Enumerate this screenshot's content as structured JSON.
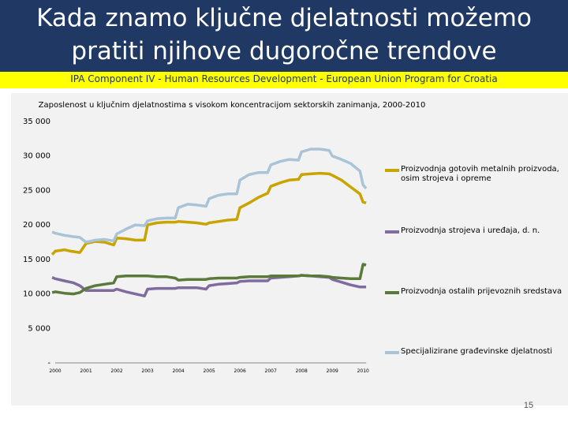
{
  "slide": {
    "title": "Kada znamo ključne djelatnosti možemo\npratiti njihove dugoročne trendove",
    "subtitle": "IPA Component IV - Human Resources Development - European Union Program for Croatia",
    "page_number": "15"
  },
  "colors": {
    "title_band": "#1f3864",
    "subtitle_band": "#ffff00",
    "panel": "#f2f2f2"
  },
  "chart_data": {
    "type": "line",
    "title": "Zaposlenost u ključnim djelatnostima s visokom koncentracijom sektorskih zanimanja, 2000-2010",
    "xlabel": "",
    "ylabel": "",
    "ylim": [
      0,
      35000
    ],
    "y_ticks": [
      0,
      5000,
      10000,
      15000,
      20000,
      25000,
      30000,
      35000
    ],
    "y_tick_labels": [
      "-",
      "5 000",
      "10 000",
      "15 000",
      "20 000",
      "25 000",
      "30 000",
      "35 000"
    ],
    "x_ticks": [
      2000,
      2001,
      2002,
      2003,
      2004,
      2005,
      2006,
      2007,
      2008,
      2009,
      2010
    ],
    "x_tick_labels": [
      "2000",
      "2001",
      "2002",
      "2003",
      "2004",
      "2005",
      "2006",
      "2007",
      "2008",
      "2009",
      "2010"
    ],
    "xlim": [
      2000,
      2010.25
    ],
    "grid": "none",
    "legend_position": "right",
    "series": [
      {
        "name": "Proizvodnja gotovih metalnih proizvoda, osim strojeva i opreme",
        "color": "#c9a400",
        "x": [
          1999.9,
          2000.0,
          2000.3,
          2000.5,
          2000.8,
          2001.0,
          2001.3,
          2001.6,
          2001.9,
          2002.0,
          2002.3,
          2002.6,
          2002.9,
          2003.0,
          2003.3,
          2003.6,
          2003.9,
          2004.0,
          2004.3,
          2004.6,
          2004.9,
          2005.0,
          2005.3,
          2005.6,
          2005.9,
          2006.0,
          2006.3,
          2006.6,
          2006.9,
          2007.0,
          2007.3,
          2007.6,
          2007.9,
          2008.0,
          2008.3,
          2008.6,
          2008.9,
          2009.0,
          2009.3,
          2009.6,
          2009.9,
          2010.0,
          2010.1
        ],
        "values": [
          15700,
          16200,
          16400,
          16200,
          16000,
          17300,
          17600,
          17500,
          17100,
          18100,
          18000,
          17800,
          17800,
          20000,
          20300,
          20400,
          20400,
          20500,
          20400,
          20300,
          20100,
          20300,
          20500,
          20700,
          20800,
          22500,
          23200,
          24000,
          24600,
          25600,
          26100,
          26500,
          26600,
          27300,
          27400,
          27500,
          27400,
          27200,
          26500,
          25500,
          24500,
          23300,
          23200
        ]
      },
      {
        "name": "Proizvodnja strojeva i uređaja, d. n.",
        "color": "#7f6b9e",
        "x": [
          1999.9,
          2000.0,
          2000.3,
          2000.6,
          2000.8,
          2001.0,
          2001.3,
          2001.6,
          2001.9,
          2002.0,
          2002.3,
          2002.6,
          2002.9,
          2003.0,
          2003.3,
          2003.6,
          2003.9,
          2004.0,
          2004.3,
          2004.6,
          2004.9,
          2005.0,
          2005.3,
          2005.6,
          2005.9,
          2006.0,
          2006.3,
          2006.6,
          2006.9,
          2007.0,
          2007.3,
          2007.6,
          2007.9,
          2008.0,
          2008.3,
          2008.6,
          2008.9,
          2009.0,
          2009.3,
          2009.6,
          2009.9,
          2010.0,
          2010.1
        ],
        "values": [
          12400,
          12200,
          11900,
          11600,
          11200,
          10500,
          10500,
          10500,
          10500,
          10700,
          10300,
          10000,
          9700,
          10700,
          10800,
          10800,
          10800,
          10900,
          10900,
          10900,
          10700,
          11200,
          11400,
          11500,
          11600,
          11800,
          11900,
          11900,
          11900,
          12300,
          12400,
          12500,
          12600,
          12700,
          12600,
          12500,
          12400,
          12100,
          11700,
          11300,
          11000,
          11000,
          11000
        ]
      },
      {
        "name": "Proizvodnja ostalih prijevoznih sredstava",
        "color": "#5a7a3a",
        "x": [
          1999.9,
          2000.0,
          2000.3,
          2000.6,
          2000.8,
          2001.0,
          2001.3,
          2001.6,
          2001.9,
          2002.0,
          2002.3,
          2002.6,
          2002.9,
          2003.0,
          2003.3,
          2003.6,
          2003.9,
          2004.0,
          2004.3,
          2004.6,
          2004.9,
          2005.0,
          2005.3,
          2005.6,
          2005.9,
          2006.0,
          2006.3,
          2006.6,
          2006.9,
          2007.0,
          2007.3,
          2007.6,
          2007.9,
          2008.0,
          2008.3,
          2008.6,
          2008.9,
          2009.0,
          2009.3,
          2009.6,
          2009.9,
          2010.0,
          2010.1
        ],
        "values": [
          10200,
          10300,
          10100,
          10000,
          10200,
          10800,
          11200,
          11400,
          11600,
          12500,
          12600,
          12600,
          12600,
          12600,
          12500,
          12500,
          12300,
          12000,
          12100,
          12100,
          12100,
          12200,
          12300,
          12300,
          12300,
          12400,
          12500,
          12500,
          12500,
          12600,
          12600,
          12600,
          12600,
          12700,
          12600,
          12600,
          12500,
          12400,
          12300,
          12200,
          12200,
          14300,
          14200
        ]
      },
      {
        "name": "Specijalizirane građevinske djelatnosti",
        "color": "#a9c4d6",
        "x": [
          1999.9,
          2000.0,
          2000.3,
          2000.6,
          2000.8,
          2001.0,
          2001.3,
          2001.6,
          2001.9,
          2002.0,
          2002.3,
          2002.6,
          2002.9,
          2003.0,
          2003.3,
          2003.6,
          2003.9,
          2004.0,
          2004.3,
          2004.6,
          2004.9,
          2005.0,
          2005.3,
          2005.6,
          2005.9,
          2006.0,
          2006.3,
          2006.6,
          2006.9,
          2007.0,
          2007.3,
          2007.6,
          2007.9,
          2008.0,
          2008.3,
          2008.6,
          2008.9,
          2009.0,
          2009.3,
          2009.6,
          2009.9,
          2010.0,
          2010.1
        ],
        "values": [
          19000,
          18800,
          18500,
          18300,
          18200,
          17500,
          17800,
          17900,
          17700,
          18700,
          19400,
          20000,
          19900,
          20600,
          20900,
          21000,
          21000,
          22500,
          23000,
          22900,
          22700,
          23800,
          24300,
          24500,
          24500,
          26500,
          27300,
          27600,
          27600,
          28700,
          29200,
          29500,
          29400,
          30600,
          31000,
          31000,
          30800,
          30000,
          29500,
          28900,
          27800,
          25800,
          25300
        ]
      }
    ]
  }
}
